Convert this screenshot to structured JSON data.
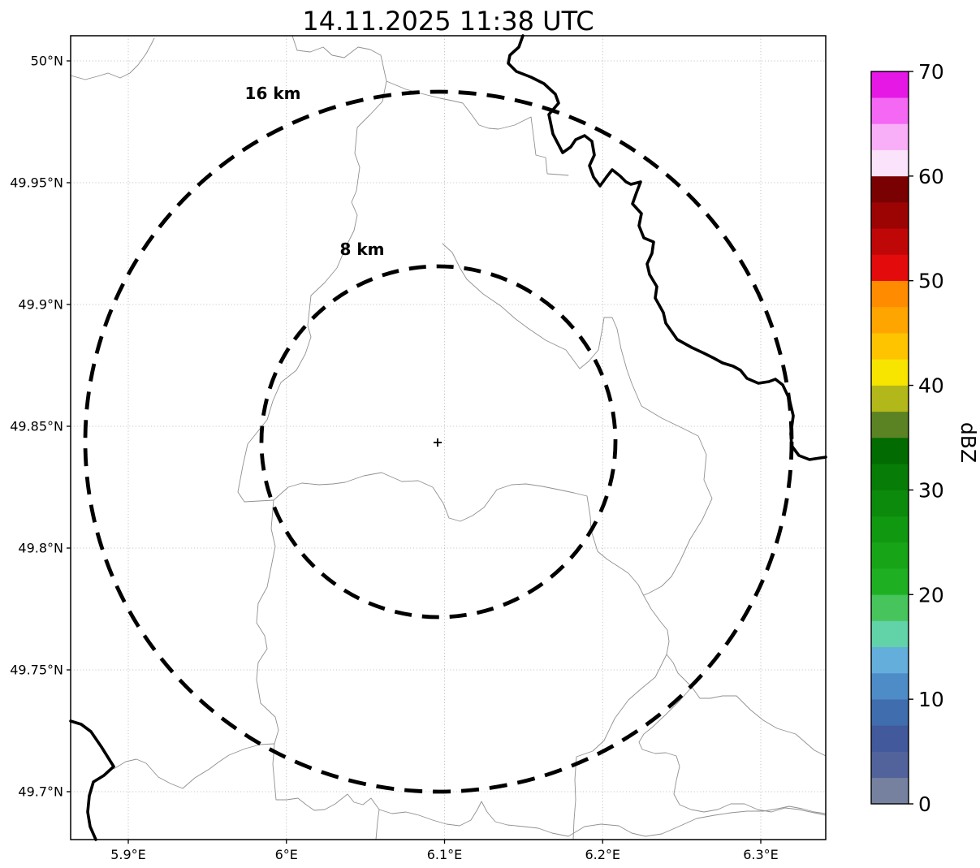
{
  "title": "14.11.2025 11:38 UTC",
  "map": {
    "x_ticks": [
      "5.9°E",
      "6°E",
      "6.1°E",
      "6.2°E",
      "6.3°E"
    ],
    "y_ticks": [
      "50°N",
      "49.95°N",
      "49.9°N",
      "49.85°N",
      "49.8°N",
      "49.75°N",
      "49.7°N"
    ],
    "range_rings": [
      {
        "label": "16 km",
        "radius_km": 16
      },
      {
        "label": "8 km",
        "radius_km": 8
      }
    ],
    "center_marker": "+"
  },
  "colorbar": {
    "unit_label": "dBZ",
    "ticks": [
      "70",
      "60",
      "50",
      "40",
      "30",
      "20",
      "10",
      "0"
    ],
    "vmin": 0,
    "vmax": 70,
    "bin_size": 2.5,
    "colors_bottom_to_top": [
      "#75819f",
      "#52639b",
      "#42599b",
      "#3f6dae",
      "#4e8cc8",
      "#64aedc",
      "#62d2a8",
      "#47c45c",
      "#1eb022",
      "#17a517",
      "#119811",
      "#0c8a0c",
      "#077c07",
      "#026b02",
      "#5c8323",
      "#b3b81a",
      "#f7e500",
      "#ffc400",
      "#ffa500",
      "#ff8c00",
      "#e30b0b",
      "#c00707",
      "#9c0404",
      "#7a0101",
      "#fce3fc",
      "#f8aff8",
      "#f468f4",
      "#e518e5"
    ]
  }
}
